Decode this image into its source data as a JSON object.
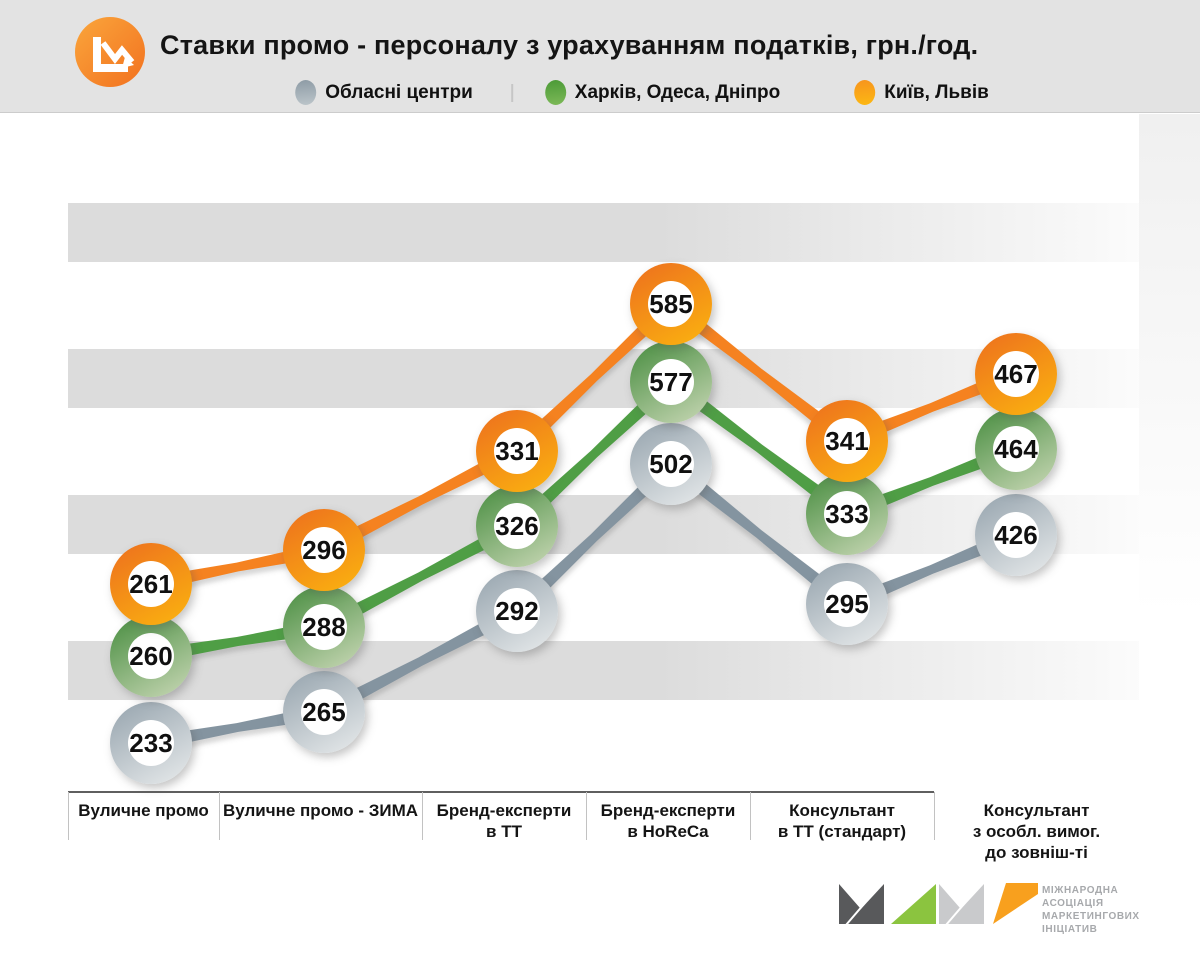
{
  "header": {
    "title": "Ставки промо - персоналу з урахуванням податків, грн./год."
  },
  "legend": [
    {
      "label": "Обласні центри",
      "color": "#97a5ae"
    },
    {
      "label": "Харків, Одеса, Дніпро",
      "color": "#58a33c"
    },
    {
      "label": "Київ, Львів",
      "color": "#f89c1c"
    }
  ],
  "chart_data": {
    "type": "line",
    "title": "Ставки промо - персоналу з урахуванням податків, грн./год.",
    "unit": "грн./год.",
    "legend_position": "top",
    "grid": "horizontal-bands",
    "categories": [
      "Вуличне промо",
      "Вуличне промо - ЗИМА",
      "Бренд-експерти\nв ТТ",
      "Бренд-експерти\nв HoReCa",
      "Консультант\nв ТТ (стандарт)",
      "Консультант\nз особл. вимог.\nдо зовніш-ті"
    ],
    "series": [
      {
        "name": "Обласні центри",
        "color": "#8494a0",
        "ring": [
          "#95a3ad",
          "#e8ebec"
        ],
        "values": [
          233,
          265,
          292,
          502,
          295,
          426
        ]
      },
      {
        "name": "Харків, Одеса, Дніпро",
        "color": "#4f9e45",
        "ring": [
          "#468c3e",
          "#c9d8b6"
        ],
        "values": [
          260,
          288,
          326,
          577,
          333,
          464
        ]
      },
      {
        "name": "Київ, Львів",
        "color": "#f58220",
        "ring": [
          "#ed6f1e",
          "#fbb40f"
        ],
        "values": [
          261,
          296,
          331,
          585,
          341,
          467
        ]
      }
    ]
  },
  "association": {
    "lines": [
      "МІЖНАРОДНА",
      "АСОЦІАЦІЯ",
      "МАРКЕТИНГОВИХ",
      "ІНІЦІАТИВ"
    ]
  }
}
